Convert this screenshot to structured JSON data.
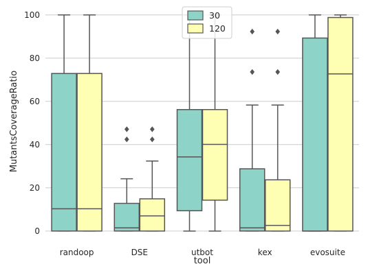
{
  "chart_data": {
    "type": "box",
    "title": "",
    "xlabel": "tool",
    "ylabel": "MutantsCoverageRatio",
    "ylim": [
      -4.5,
      105
    ],
    "yticks": [
      0,
      20,
      40,
      60,
      80,
      100
    ],
    "grid": "horizontal",
    "legend_position": "top-center",
    "categories": [
      "randoop",
      "DSE",
      "utbot",
      "kex",
      "evosuite"
    ],
    "series": [
      {
        "name": "30",
        "color": "#8dd3c7",
        "boxes": [
          {
            "whisker_low": 0,
            "q1": 0,
            "median": 10.3,
            "q3": 72.9,
            "whisker_high": 100,
            "outliers": []
          },
          {
            "whisker_low": 0,
            "q1": 0,
            "median": 1.5,
            "q3": 12.8,
            "whisker_high": 24.2,
            "outliers": [
              42.4,
              47.1
            ]
          },
          {
            "whisker_low": 0,
            "q1": 9.4,
            "median": 34.3,
            "q3": 56.2,
            "whisker_high": 100,
            "outliers": []
          },
          {
            "whisker_low": 0,
            "q1": 0,
            "median": 1.5,
            "q3": 28.8,
            "whisker_high": 58.3,
            "outliers": [
              73.6,
              92.3
            ]
          },
          {
            "whisker_low": 0,
            "q1": 0,
            "median": 0,
            "q3": 89.3,
            "whisker_high": 100,
            "outliers": []
          }
        ]
      },
      {
        "name": "120",
        "color": "#ffffb3",
        "boxes": [
          {
            "whisker_low": 0,
            "q1": 0,
            "median": 10.3,
            "q3": 72.9,
            "whisker_high": 100,
            "outliers": []
          },
          {
            "whisker_low": 0,
            "q1": 0,
            "median": 7.0,
            "q3": 14.9,
            "whisker_high": 32.4,
            "outliers": [
              42.4,
              47.1
            ]
          },
          {
            "whisker_low": 0,
            "q1": 14.3,
            "median": 40.1,
            "q3": 56.2,
            "whisker_high": 100,
            "outliers": []
          },
          {
            "whisker_low": 0,
            "q1": 0,
            "median": 2.6,
            "q3": 23.7,
            "whisker_high": 58.3,
            "outliers": [
              73.6,
              92.3
            ]
          },
          {
            "whisker_low": 0,
            "q1": 0,
            "median": 72.7,
            "q3": 98.8,
            "whisker_high": 100,
            "outliers": []
          }
        ]
      }
    ]
  },
  "style": {
    "grid_color": "#cccccc",
    "line_color": "#555555",
    "text_color": "#262626"
  }
}
